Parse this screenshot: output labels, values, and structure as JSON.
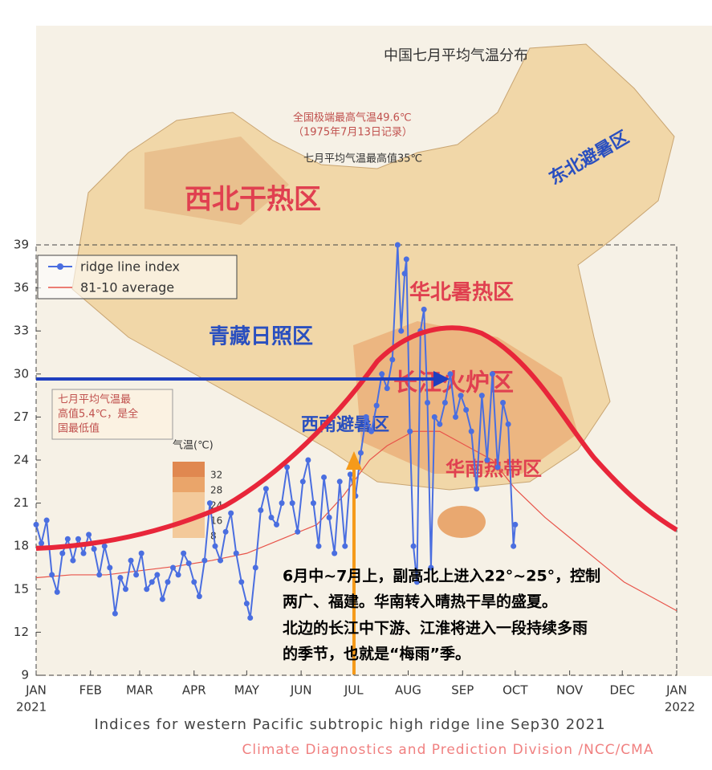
{
  "chart_data": {
    "type": "line",
    "title": "Indices for western Pacific subtropic high ridge line Sep30 2021",
    "subtitle": "Climate Diagnostics and Prediction Division /NCC/CMA",
    "x_start_year": "2021",
    "x_end_year": "2022",
    "xlim": [
      0,
      365
    ],
    "xticks": [
      {
        "value": 0,
        "label": "JAN"
      },
      {
        "value": 31,
        "label": "FEB"
      },
      {
        "value": 59,
        "label": "MAR"
      },
      {
        "value": 90,
        "label": "APR"
      },
      {
        "value": 120,
        "label": "MAY"
      },
      {
        "value": 151,
        "label": "JUN"
      },
      {
        "value": 181,
        "label": "JUL"
      },
      {
        "value": 212,
        "label": "AUG"
      },
      {
        "value": 243,
        "label": "SEP"
      },
      {
        "value": 273,
        "label": "OCT"
      },
      {
        "value": 304,
        "label": "NOV"
      },
      {
        "value": 334,
        "label": "DEC"
      },
      {
        "value": 365,
        "label": "JAN"
      }
    ],
    "ylim": [
      9,
      39
    ],
    "yticks": [
      9,
      12,
      15,
      18,
      21,
      24,
      27,
      30,
      33,
      36,
      39
    ],
    "legend": "upper left",
    "series": [
      {
        "name": "ridge line index",
        "color": "#4a6ee0",
        "x": [
          0,
          3,
          6,
          9,
          12,
          15,
          18,
          21,
          24,
          27,
          30,
          33,
          36,
          39,
          42,
          45,
          48,
          51,
          54,
          57,
          60,
          63,
          66,
          69,
          72,
          75,
          78,
          81,
          84,
          87,
          90,
          93,
          96,
          99,
          102,
          105,
          108,
          111,
          114,
          117,
          120,
          122,
          125,
          128,
          131,
          134,
          137,
          140,
          143,
          146,
          149,
          152,
          155,
          158,
          161,
          164,
          167,
          170,
          173,
          176,
          179,
          182,
          185,
          188,
          191,
          194,
          197,
          200,
          203,
          206,
          208,
          210,
          211,
          213,
          215,
          217,
          219,
          221,
          223,
          225,
          227,
          230,
          233,
          236,
          239,
          242,
          245,
          248,
          251,
          254,
          257,
          260,
          263,
          266,
          269,
          272,
          273
        ],
        "values": [
          19.5,
          18.2,
          19.8,
          16,
          14.8,
          17.5,
          18.5,
          17,
          18.5,
          17.5,
          18.8,
          17.8,
          16,
          18,
          16.5,
          13.3,
          15.8,
          15,
          17,
          16,
          17.5,
          15,
          15.5,
          16,
          14.3,
          15.5,
          16.5,
          16,
          17.5,
          16.8,
          15.5,
          14.5,
          17,
          21,
          18,
          17,
          19,
          20.3,
          17.5,
          15.5,
          14,
          13,
          16.5,
          20.5,
          22,
          20,
          19.5,
          21,
          23.5,
          21,
          19,
          22.5,
          24,
          21,
          18,
          22.8,
          20,
          17.5,
          22.5,
          18,
          23,
          21.5,
          24.5,
          27,
          26,
          27.8,
          30,
          29,
          31,
          39,
          33,
          37,
          38,
          26,
          18,
          15.5,
          33,
          34.5,
          28,
          16.5,
          27,
          26.5,
          28,
          30,
          27,
          28.5,
          27.5,
          26,
          22,
          28.5,
          24,
          30,
          23.5,
          28,
          26.5,
          18,
          19.5
        ]
      },
      {
        "name": "81-10 average",
        "color": "#e8544a",
        "x": [
          0,
          20,
          40,
          60,
          80,
          100,
          120,
          140,
          160,
          175,
          190,
          200,
          215,
          230,
          245,
          260,
          273,
          290,
          305,
          320,
          335,
          350,
          365
        ],
        "values": [
          15.8,
          16,
          16,
          16.3,
          16.6,
          17,
          17.5,
          18.5,
          19.5,
          21.5,
          24,
          25,
          26,
          26,
          25,
          24,
          22,
          20,
          18.5,
          17,
          15.5,
          14.5,
          13.5
        ]
      }
    ]
  },
  "map": {
    "title": "中国七月平均气温分布",
    "regions": [
      "西北干热区",
      "华北暑热区",
      "青藏日照区",
      "长江火炉区",
      "西南避暑区",
      "华南热带区",
      "东北避暑区"
    ],
    "notes": [
      "全国极端最高气温49.6℃",
      "（1975年7月13日记录）",
      "七月平均气温最高值35℃",
      "七月平均气温最",
      "高值5.4℃，是全",
      "国最低值"
    ],
    "legend_title": "气温(℃)",
    "legend_levels": [
      "32",
      "28",
      "24",
      "16",
      "8"
    ]
  },
  "annotation": [
    "6月中~7月上，副高北上进入22°~25°，控制",
    "两广、福建。华南转入晴热干旱的盛夏。",
    "北边的长江中下游、江淮将进入一段持续多雨",
    "的季节，也就是“梅雨”季。"
  ]
}
